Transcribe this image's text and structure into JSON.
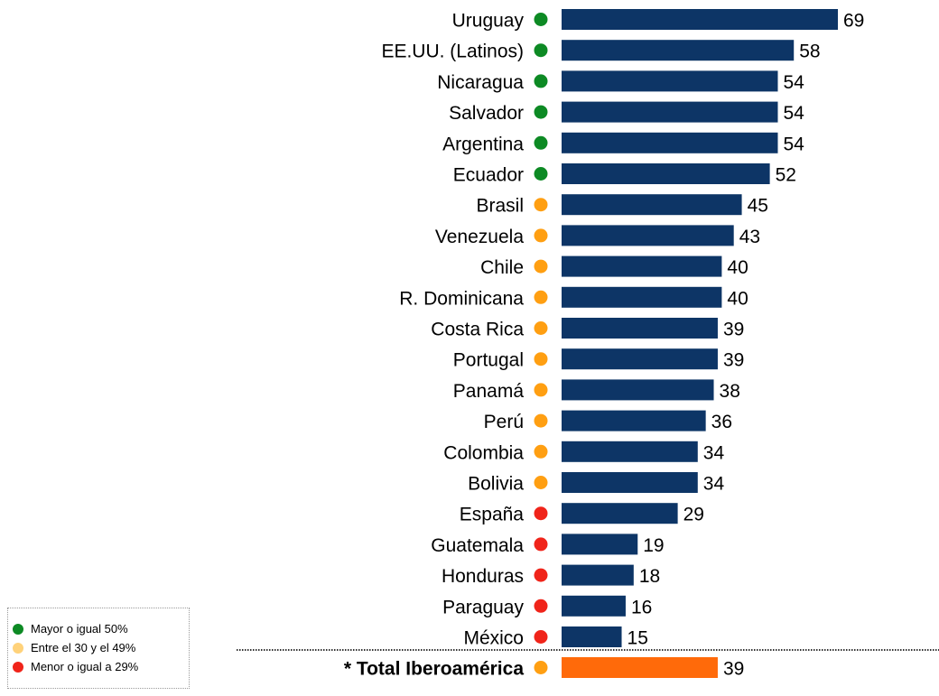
{
  "chart_data": {
    "type": "bar",
    "orientation": "horizontal",
    "bar_color": "#0d3566",
    "total_bar_color": "#ff6a0a",
    "status_colors": {
      "high": "#0d8a24",
      "mid": "#ff9f12",
      "low": "#f0241a"
    },
    "categories": [
      "Uruguay",
      "EE.UU. (Latinos)",
      "Nicaragua",
      "Salvador",
      "Argentina",
      "Ecuador",
      "Brasil",
      "Venezuela",
      "Chile",
      "R. Dominicana",
      "Costa Rica",
      "Portugal",
      "Panamá",
      "Perú",
      "Colombia",
      "Bolivia",
      "España",
      "Guatemala",
      "Honduras",
      "Paraguay",
      "México"
    ],
    "values": [
      69,
      58,
      54,
      54,
      54,
      52,
      45,
      43,
      40,
      40,
      39,
      39,
      38,
      36,
      34,
      34,
      29,
      19,
      18,
      16,
      15
    ],
    "status": [
      "high",
      "high",
      "high",
      "high",
      "high",
      "high",
      "mid",
      "mid",
      "mid",
      "mid",
      "mid",
      "mid",
      "mid",
      "mid",
      "mid",
      "mid",
      "low",
      "low",
      "low",
      "low",
      "low"
    ],
    "total": {
      "label": "* Total Iberoamérica",
      "value": 39,
      "status": "mid"
    },
    "xlim": [
      0,
      69
    ]
  },
  "legend": {
    "items": [
      {
        "label": "Mayor o igual 50%",
        "color": "#0d8a24"
      },
      {
        "label": "Entre el 30 y el 49%",
        "color": "#ffd27a"
      },
      {
        "label": "Menor o igual a 29%",
        "color": "#f0241a"
      }
    ]
  }
}
